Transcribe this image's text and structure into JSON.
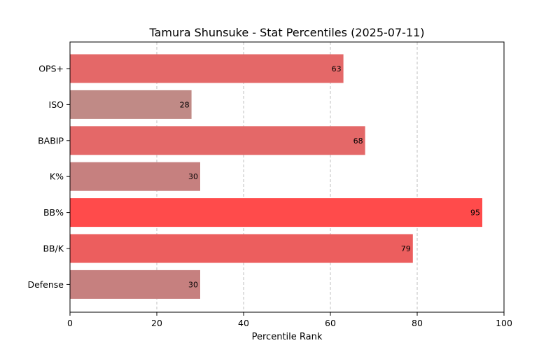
{
  "chart_data": {
    "type": "bar",
    "orientation": "horizontal",
    "title": "Tamura Shunsuke - Stat Percentiles (2025-07-11)",
    "xlabel": "Percentile Rank",
    "ylabel": "",
    "xlim": [
      0,
      100
    ],
    "xticks": [
      0,
      20,
      40,
      60,
      80,
      100
    ],
    "grid": "x-dashed",
    "categories": [
      "OPS+",
      "ISO",
      "BABIP",
      "K%",
      "BB%",
      "BB/K",
      "Defense"
    ],
    "values": [
      63,
      28,
      68,
      30,
      95,
      79,
      30
    ],
    "colors": [
      "#e46868",
      "#c08a86",
      "#e46868",
      "#c6807f",
      "#ff4b4b",
      "#ec5e5e",
      "#c6807f"
    ]
  }
}
